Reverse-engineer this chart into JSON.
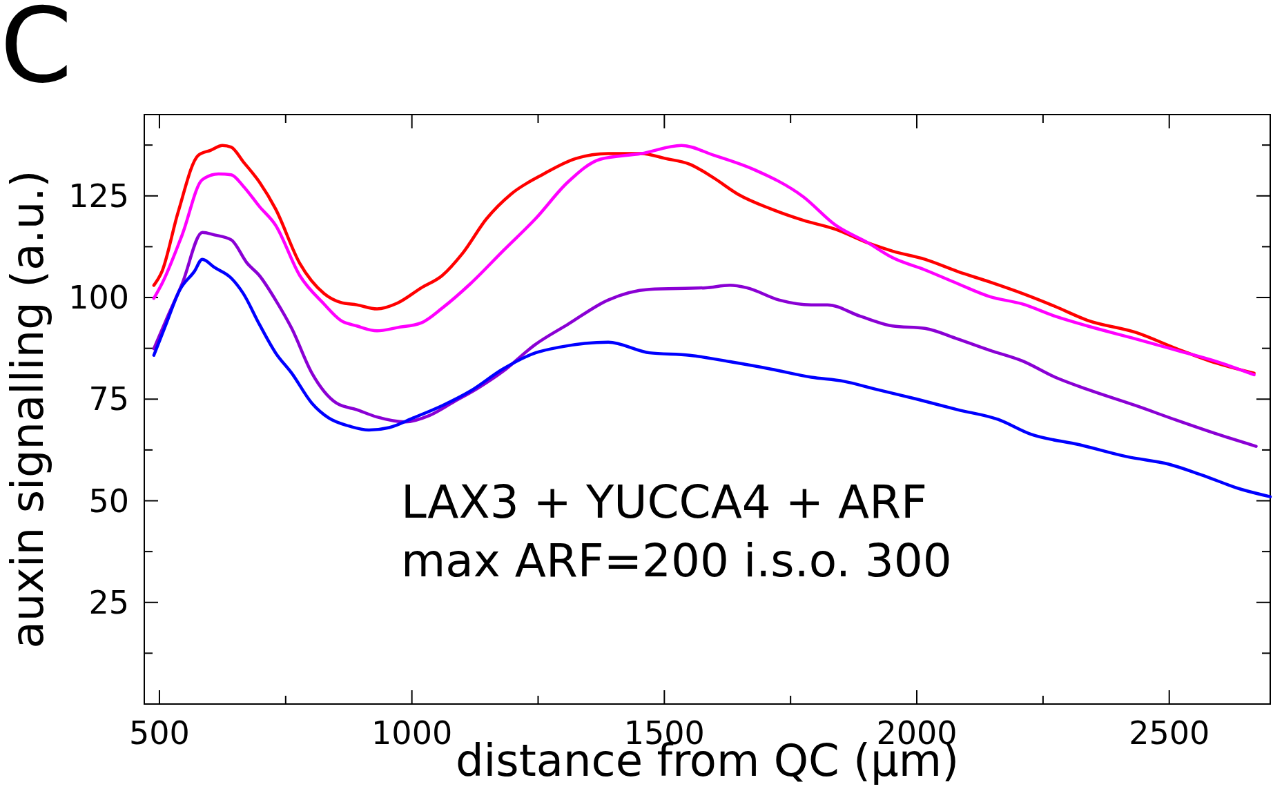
{
  "chart_data": {
    "type": "line",
    "xlabel": "distance from QC (µm)",
    "ylabel": "auxin signalling (a.u.)",
    "annotations": [
      "C",
      "LAX3 + YUCCA4 + ARF",
      "max ARF=200 i.s.o. 300"
    ],
    "xlim": [
      470,
      2700
    ],
    "ylim": [
      0,
      145
    ],
    "xticks": [
      500,
      {
        "value": 750,
        "label": null
      },
      1000,
      {
        "value": 1250,
        "label": null
      },
      1500,
      {
        "value": 1750,
        "label": null
      },
      2000,
      {
        "value": 2250,
        "label": null
      },
      2500
    ],
    "yticks": [
      {
        "value": 12.5,
        "label": null
      },
      25,
      {
        "value": 37.5,
        "label": null
      },
      50,
      {
        "value": 62.5,
        "label": null
      },
      75,
      {
        "value": 87.5,
        "label": null
      },
      100,
      {
        "value": 112.5,
        "label": null
      },
      125,
      {
        "value": 137.5,
        "label": null
      }
    ],
    "grid": false,
    "line_style": "solid",
    "marker": "none",
    "series": [
      {
        "color": "#ff0000",
        "x": [
          489,
          505,
          537,
          577,
          601,
          625,
          642,
          666,
          698,
          730,
          778,
          826,
          859,
          891,
          931,
          971,
          1019,
          1060,
          1100,
          1148,
          1196,
          1261,
          1325,
          1389,
          1454,
          1502,
          1550,
          1598,
          1646,
          1711,
          1775,
          1839,
          1904,
          1952,
          2016,
          2081,
          2145,
          2209,
          2274,
          2338,
          2434,
          2515,
          2595,
          2668
        ],
        "values": [
          103,
          106.4,
          121,
          135,
          136.2,
          137.4,
          137,
          133.4,
          128.4,
          121.8,
          108.4,
          101,
          98.8,
          98.2,
          97.2,
          98.6,
          102.4,
          105.4,
          110.8,
          119.4,
          125.4,
          130.4,
          134.2,
          135.4,
          135.4,
          134.2,
          132.8,
          129.4,
          125.4,
          121.8,
          119,
          116.8,
          113.4,
          111.4,
          109.4,
          106.4,
          103.8,
          101,
          97.8,
          94.4,
          91.4,
          87.4,
          83.8,
          81.4
        ]
      },
      {
        "color": "#ff00ff",
        "x": [
          489,
          505,
          545,
          585,
          617,
          642,
          666,
          698,
          730,
          778,
          826,
          859,
          891,
          931,
          971,
          1019,
          1060,
          1116,
          1180,
          1245,
          1309,
          1373,
          1454,
          1534,
          1598,
          1679,
          1775,
          1839,
          1904,
          1952,
          2016,
          2081,
          2145,
          2209,
          2274,
          2338,
          2434,
          2515,
          2595,
          2668
        ],
        "values": [
          99.8,
          103.4,
          115.4,
          129,
          130.4,
          130.2,
          127.4,
          122.4,
          117.8,
          105.4,
          98.4,
          94.4,
          93,
          91.8,
          92.6,
          93.8,
          97.4,
          103.4,
          111.4,
          119.4,
          128.4,
          134,
          135.4,
          137.4,
          135,
          131.4,
          124.8,
          117.8,
          113.4,
          109.8,
          106.8,
          103.4,
          100.2,
          98.4,
          95.4,
          93,
          89.8,
          87,
          84.2,
          81
        ]
      },
      {
        "color": "#8a00d4",
        "x": [
          489,
          513,
          545,
          585,
          609,
          642,
          674,
          698,
          730,
          762,
          802,
          851,
          891,
          931,
          987,
          1035,
          1084,
          1132,
          1180,
          1244,
          1309,
          1389,
          1470,
          1582,
          1630,
          1663,
          1727,
          1791,
          1823,
          1888,
          1952,
          2016,
          2081,
          2145,
          2209,
          2274,
          2338,
          2434,
          2515,
          2595,
          2672
        ],
        "values": [
          87.4,
          94.4,
          103.4,
          116,
          115.4,
          114.2,
          108.4,
          105.4,
          99.4,
          92.4,
          81.4,
          74,
          72.4,
          70.6,
          69.4,
          71,
          74.4,
          77.8,
          81.8,
          88.4,
          93.4,
          99.4,
          102,
          102.4,
          103,
          102.4,
          99.4,
          98.2,
          98.2,
          95.4,
          93,
          92.4,
          89.8,
          87,
          84.4,
          80.4,
          77.4,
          73.4,
          69.8,
          66.4,
          63.4
        ]
      },
      {
        "color": "#0000ff",
        "x": [
          489,
          513,
          540,
          569,
          585,
          609,
          642,
          666,
          698,
          730,
          762,
          802,
          835,
          875,
          915,
          955,
          1003,
          1060,
          1116,
          1180,
          1245,
          1293,
          1389,
          1470,
          1550,
          1630,
          1711,
          1791,
          1855,
          1920,
          2000,
          2081,
          2161,
          2225,
          2322,
          2418,
          2499,
          2563,
          2643,
          2700
        ],
        "values": [
          85.8,
          93.4,
          101.8,
          106.4,
          109.4,
          107.4,
          104.8,
          101,
          93.4,
          86.4,
          81.4,
          74,
          70.4,
          68.4,
          67.4,
          68,
          70.4,
          73.4,
          77,
          82.4,
          86.4,
          87.8,
          89,
          86.4,
          85.8,
          84.2,
          82.4,
          80.4,
          79.4,
          77.4,
          75,
          72.4,
          70,
          66.4,
          63.8,
          60.8,
          59,
          56.4,
          52.8,
          51
        ]
      }
    ]
  }
}
